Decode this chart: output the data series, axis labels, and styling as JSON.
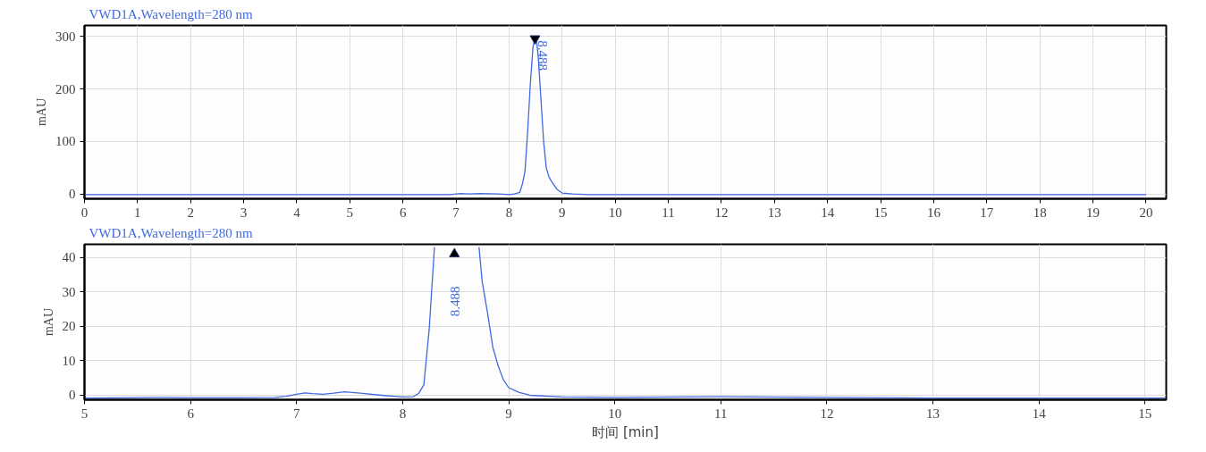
{
  "chart_data": [
    {
      "type": "line",
      "title": "VWD1A,Wavelength=280 nm",
      "ylabel": "mAU",
      "xlim": [
        0,
        20.38
      ],
      "ylim": [
        -9,
        321
      ],
      "xticks": [
        0,
        1,
        2,
        3,
        4,
        5,
        6,
        7,
        8,
        9,
        10,
        11,
        12,
        13,
        14,
        15,
        16,
        17,
        18,
        19,
        20
      ],
      "yticks": [
        0,
        100,
        200,
        300
      ],
      "grid": true,
      "series": [
        {
          "color": "#4169e1",
          "x": [
            0,
            2,
            4,
            6,
            6.9,
            7.08,
            7.25,
            7.45,
            7.8,
            8.0,
            8.1,
            8.2,
            8.25,
            8.3,
            8.35,
            8.4,
            8.45,
            8.488,
            8.52,
            8.55,
            8.6,
            8.65,
            8.7,
            8.75,
            8.8,
            8.9,
            9.0,
            9.2,
            9.5,
            10,
            11,
            12,
            14,
            16,
            18,
            20
          ],
          "values": [
            -1,
            -1,
            -1,
            -1,
            -1,
            1,
            0,
            1,
            0,
            -1,
            0,
            3,
            19,
            44,
            120,
            210,
            280,
            296,
            290,
            260,
            180,
            100,
            50,
            33,
            24,
            9,
            2,
            0,
            -1,
            -1,
            -1,
            -1,
            -1,
            -1,
            -1,
            -1
          ]
        }
      ],
      "annotations": [
        {
          "text": "8.488",
          "x": 8.488,
          "y": 296
        }
      ]
    },
    {
      "type": "line",
      "title": "VWD1A,Wavelength=280 nm",
      "xlabel": "时间 [min]",
      "ylabel": "mAU",
      "xlim": [
        5,
        15.2
      ],
      "ylim": [
        -1.3,
        43.8
      ],
      "xticks": [
        5,
        6,
        7,
        8,
        9,
        10,
        11,
        12,
        13,
        14,
        15
      ],
      "yticks": [
        0,
        10,
        20,
        30,
        40
      ],
      "grid": true,
      "series": [
        {
          "color": "#4169e1",
          "x": [
            5,
            5.7,
            6,
            6.5,
            6.8,
            6.9,
            7.0,
            7.08,
            7.15,
            7.25,
            7.35,
            7.45,
            7.6,
            7.8,
            8.0,
            8.1,
            8.15,
            8.2,
            8.25,
            8.3,
            8.35,
            8.7,
            8.72,
            8.75,
            8.8,
            8.85,
            8.9,
            8.95,
            9.0,
            9.1,
            9.2,
            9.5,
            10,
            11,
            12,
            13,
            14,
            15.2
          ],
          "values": [
            -0.8,
            -0.6,
            -0.7,
            -0.7,
            -0.6,
            -0.3,
            0.3,
            0.7,
            0.5,
            0.3,
            0.6,
            1.0,
            0.6,
            0,
            -0.5,
            -0.4,
            0.5,
            3,
            19,
            43,
            null,
            null,
            43,
            33,
            24,
            14,
            8.6,
            4.5,
            2.2,
            0.8,
            0,
            -0.5,
            -0.6,
            -0.4,
            -0.6,
            -0.8,
            -0.8,
            -0.8
          ]
        }
      ],
      "annotations": [
        {
          "text": "8.488",
          "x": 8.488,
          "y": 41
        }
      ]
    }
  ]
}
